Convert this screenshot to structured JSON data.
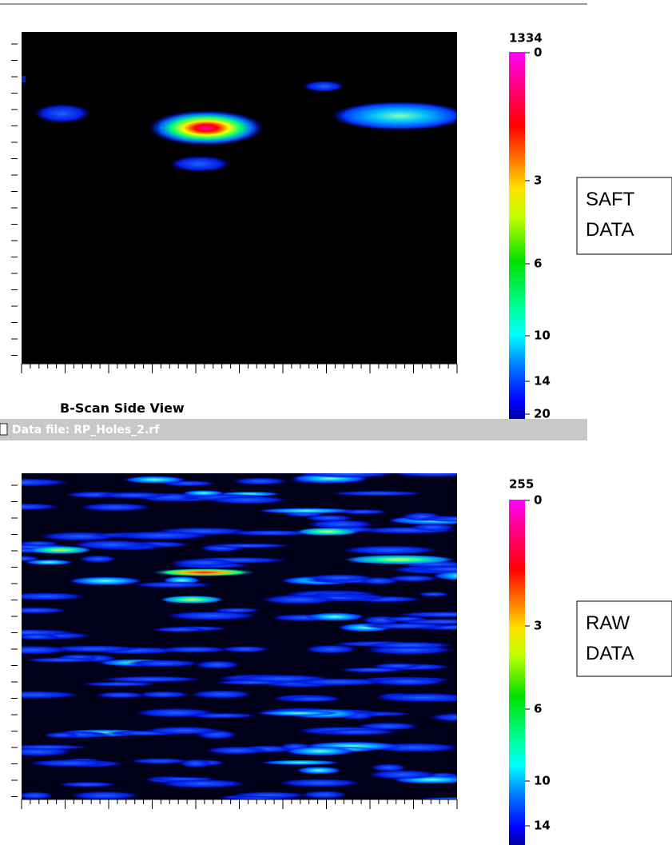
{
  "top_panel": {
    "scale_max": "1334",
    "scale_ticks": [
      "0",
      "3",
      "6",
      "10",
      "14",
      "20"
    ],
    "caption": "B-Scan Side View",
    "note": [
      "SAFT",
      "DATA"
    ]
  },
  "title_bar": "Data file: RP_Holes_2.rf",
  "bottom_panel": {
    "scale_max": "255",
    "scale_ticks": [
      "0",
      "3",
      "6",
      "10",
      "14"
    ],
    "note": [
      "RAW",
      "DATA"
    ]
  }
}
